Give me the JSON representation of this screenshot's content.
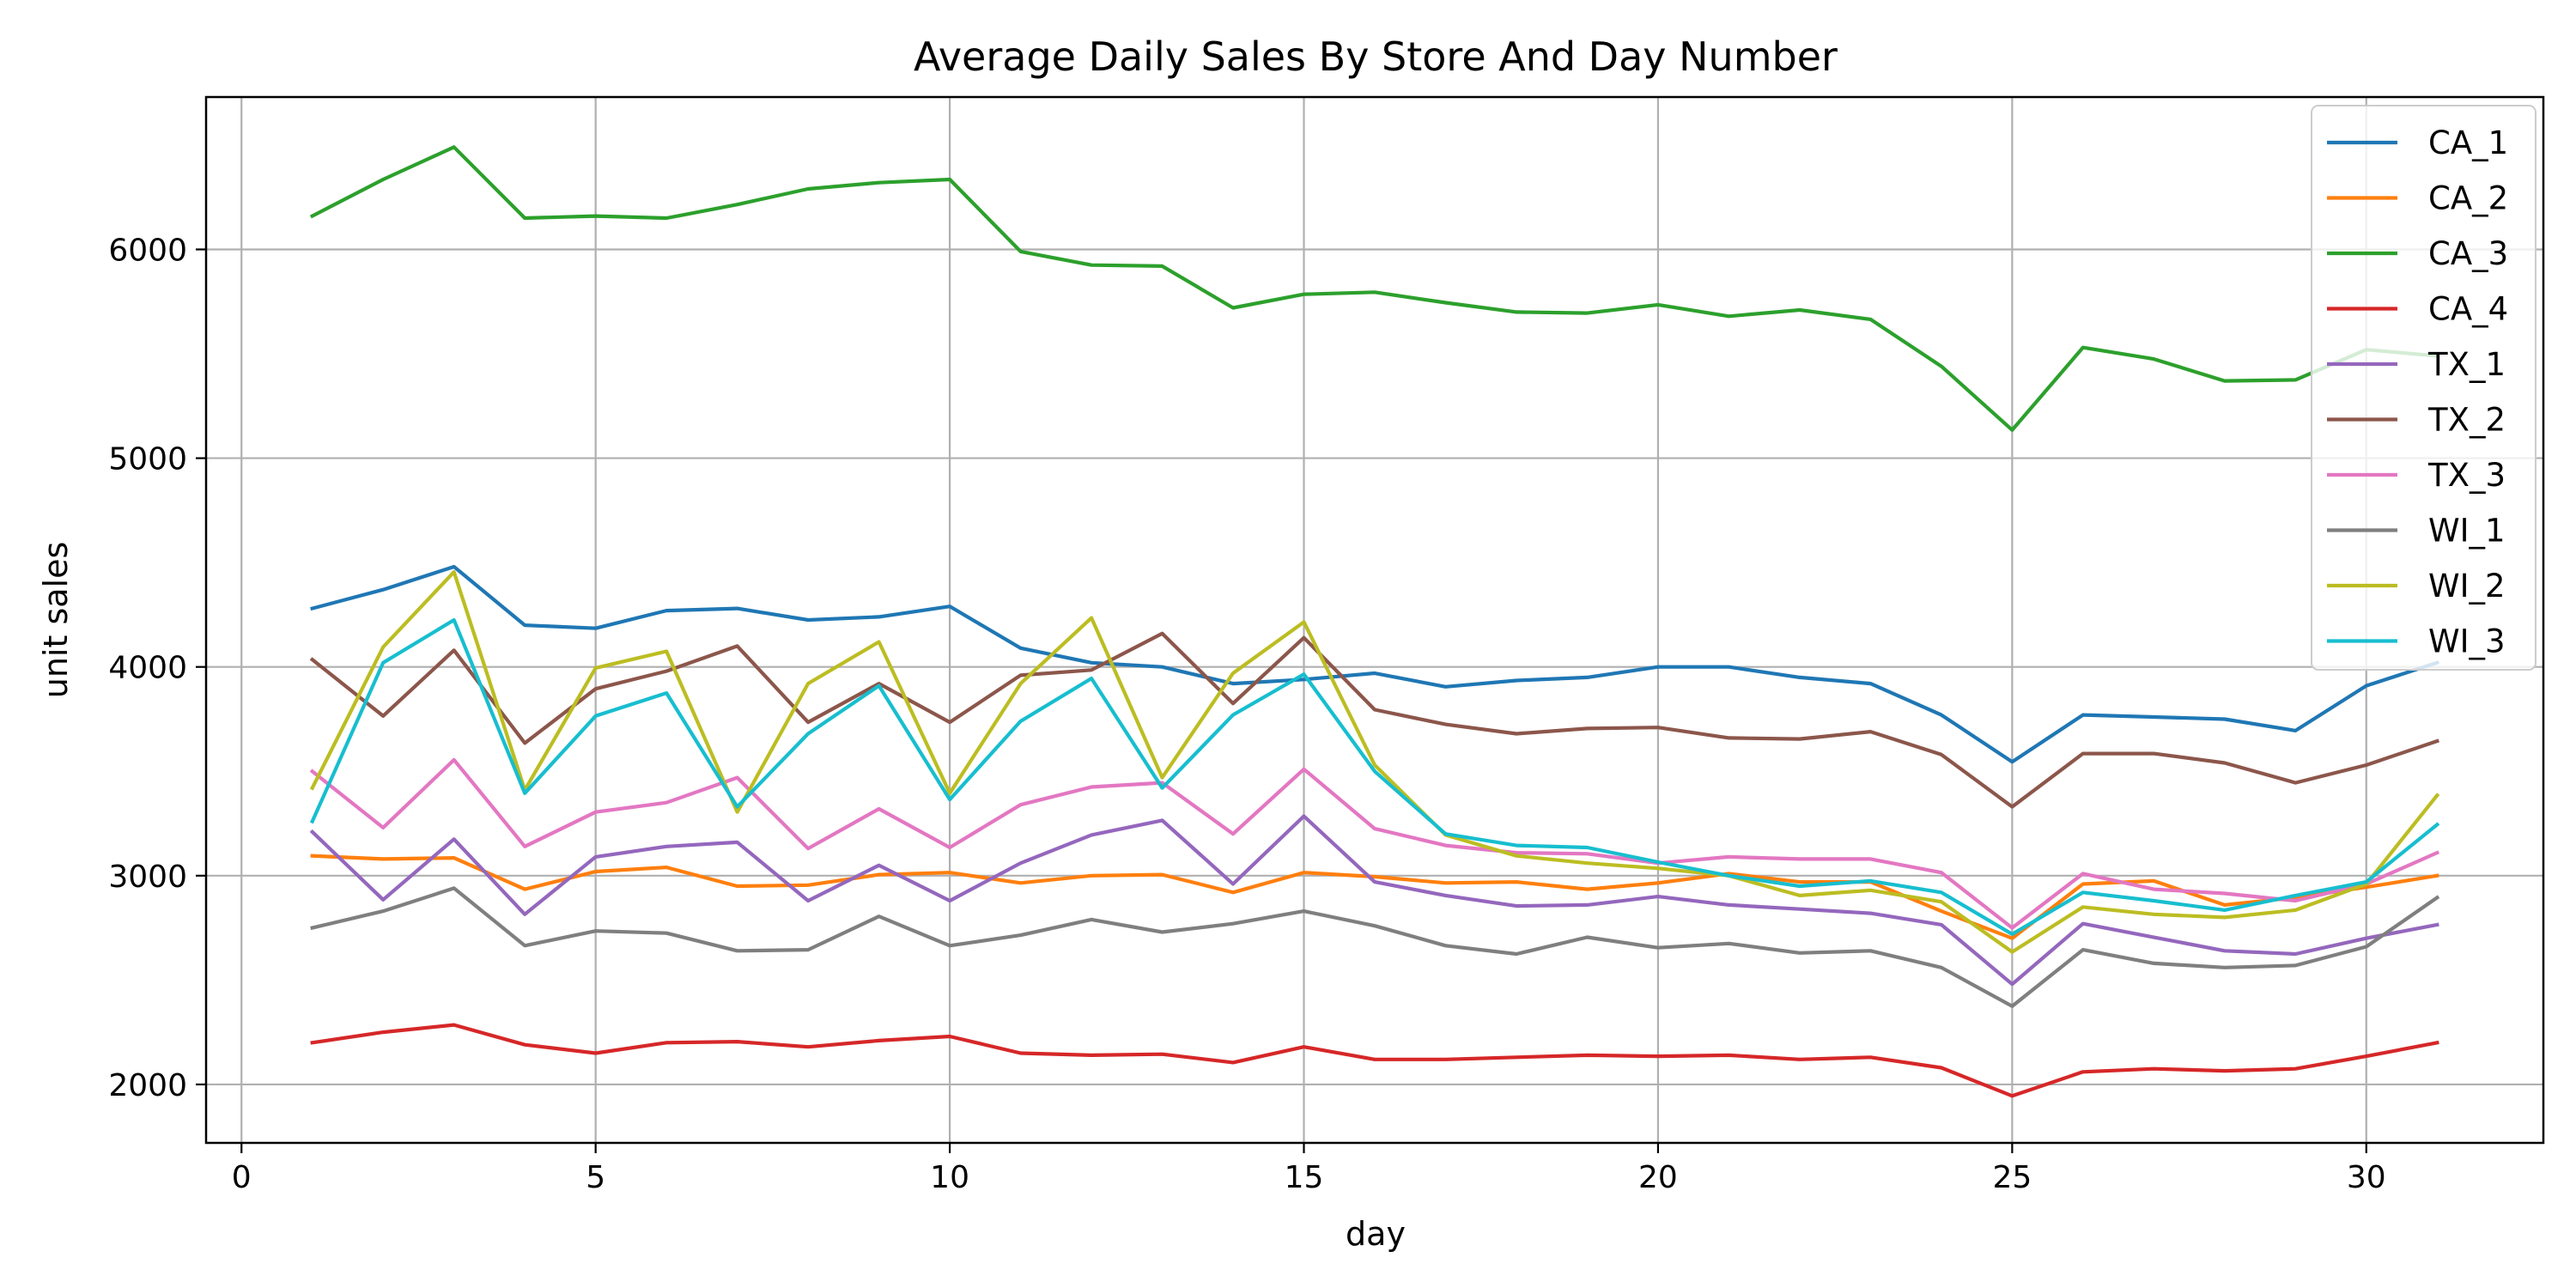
{
  "chart_data": {
    "type": "line",
    "title": "Average Daily Sales By Store And Day Number",
    "xlabel": "day",
    "ylabel": "unit sales",
    "xlim": [
      -0.5,
      32.5
    ],
    "ylim": [
      1720,
      6730
    ],
    "xticks": [
      0,
      5,
      10,
      15,
      20,
      25,
      30
    ],
    "yticks": [
      2000,
      3000,
      4000,
      5000,
      6000
    ],
    "grid": true,
    "legend_position": "top-right",
    "x": [
      1,
      2,
      3,
      4,
      5,
      6,
      7,
      8,
      9,
      10,
      11,
      12,
      13,
      14,
      15,
      16,
      17,
      18,
      19,
      20,
      21,
      22,
      23,
      24,
      25,
      26,
      27,
      28,
      29,
      30,
      31
    ],
    "series": [
      {
        "name": "CA_1",
        "color": "#1f77b4",
        "values": [
          4280,
          4370,
          4480,
          4200,
          4185,
          4270,
          4280,
          4225,
          4240,
          4290,
          4090,
          4020,
          4000,
          3920,
          3940,
          3970,
          3905,
          3935,
          3950,
          4000,
          4000,
          3950,
          3920,
          3770,
          3545,
          3770,
          3760,
          3750,
          3695,
          3910,
          4020
        ]
      },
      {
        "name": "CA_2",
        "color": "#ff7f0e",
        "values": [
          3095,
          3080,
          3085,
          2935,
          3020,
          3040,
          2950,
          2955,
          3005,
          3015,
          2965,
          3000,
          3005,
          2920,
          3015,
          2995,
          2965,
          2970,
          2935,
          2965,
          3010,
          2970,
          2970,
          2830,
          2700,
          2960,
          2975,
          2860,
          2895,
          2945,
          3000
        ]
      },
      {
        "name": "CA_3",
        "color": "#2ca02c",
        "values": [
          6160,
          6335,
          6490,
          6150,
          6160,
          6150,
          6215,
          6290,
          6320,
          6335,
          5990,
          5925,
          5920,
          5720,
          5785,
          5795,
          5745,
          5700,
          5695,
          5735,
          5680,
          5710,
          5665,
          5440,
          5135,
          5530,
          5475,
          5370,
          5375,
          5520,
          5490
        ]
      },
      {
        "name": "CA_4",
        "color": "#d62728",
        "values": [
          2200,
          2250,
          2285,
          2190,
          2150,
          2200,
          2205,
          2180,
          2210,
          2230,
          2150,
          2140,
          2145,
          2105,
          2180,
          2120,
          2120,
          2130,
          2140,
          2135,
          2140,
          2120,
          2130,
          2080,
          1945,
          2060,
          2075,
          2065,
          2075,
          2135,
          2200
        ]
      },
      {
        "name": "TX_1",
        "color": "#9467bd",
        "values": [
          3210,
          2885,
          3175,
          2815,
          3090,
          3140,
          3160,
          2880,
          3050,
          2880,
          3060,
          3195,
          3265,
          2960,
          3285,
          2970,
          2905,
          2855,
          2860,
          2900,
          2860,
          2840,
          2820,
          2765,
          2480,
          2770,
          2705,
          2640,
          2625,
          2700,
          2765
        ]
      },
      {
        "name": "TX_2",
        "color": "#8c564b",
        "values": [
          4035,
          3765,
          4080,
          3635,
          3895,
          3980,
          4100,
          3735,
          3920,
          3735,
          3960,
          3985,
          4160,
          3825,
          4140,
          3795,
          3725,
          3680,
          3705,
          3710,
          3660,
          3655,
          3690,
          3580,
          3330,
          3585,
          3585,
          3540,
          3445,
          3530,
          3645
        ]
      },
      {
        "name": "TX_3",
        "color": "#e377c2",
        "values": [
          3500,
          3230,
          3555,
          3140,
          3305,
          3350,
          3470,
          3130,
          3320,
          3135,
          3340,
          3425,
          3445,
          3200,
          3510,
          3225,
          3145,
          3110,
          3105,
          3060,
          3090,
          3080,
          3080,
          3015,
          2750,
          3010,
          2935,
          2915,
          2880,
          2960,
          3110
        ]
      },
      {
        "name": "WI_1",
        "color": "#7f7f7f",
        "values": [
          2750,
          2830,
          2940,
          2665,
          2735,
          2725,
          2640,
          2645,
          2805,
          2665,
          2715,
          2790,
          2730,
          2770,
          2830,
          2760,
          2665,
          2625,
          2705,
          2655,
          2675,
          2630,
          2640,
          2560,
          2375,
          2645,
          2580,
          2560,
          2570,
          2660,
          2895
        ]
      },
      {
        "name": "WI_2",
        "color": "#bcbd22",
        "values": [
          3420,
          4095,
          4455,
          3410,
          3995,
          4075,
          3305,
          3920,
          4120,
          3395,
          3920,
          4235,
          3470,
          3970,
          4215,
          3530,
          3195,
          3095,
          3060,
          3035,
          3000,
          2905,
          2930,
          2875,
          2635,
          2850,
          2815,
          2800,
          2835,
          2960,
          3385
        ]
      },
      {
        "name": "WI_3",
        "color": "#17becf",
        "values": [
          3260,
          4020,
          4225,
          3395,
          3765,
          3875,
          3330,
          3680,
          3910,
          3365,
          3740,
          3945,
          3420,
          3770,
          3965,
          3500,
          3200,
          3145,
          3135,
          3065,
          3000,
          2950,
          2975,
          2920,
          2720,
          2920,
          2880,
          2835,
          2905,
          2970,
          3245
        ]
      }
    ]
  }
}
